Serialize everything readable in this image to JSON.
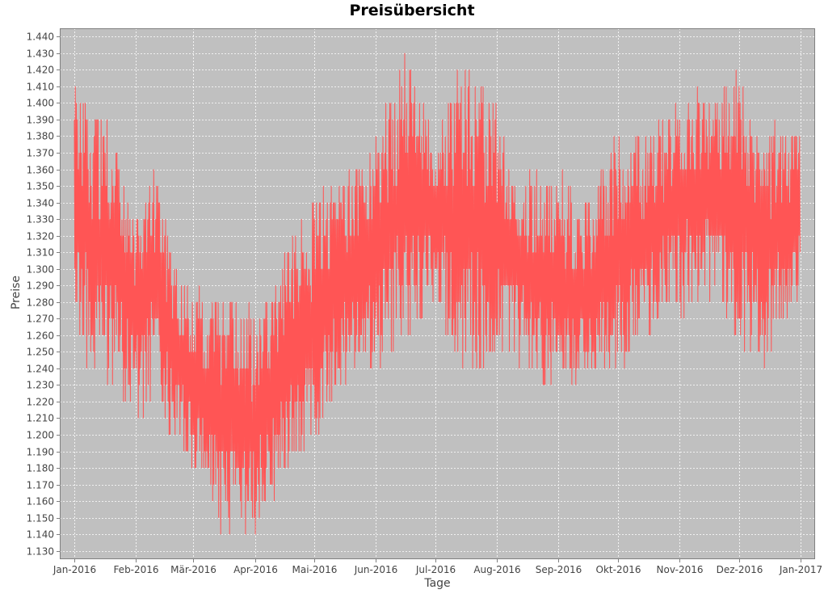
{
  "chart_data": {
    "type": "line",
    "title": "Preisübersicht",
    "xlabel": "Tage",
    "ylabel": "Preise",
    "x_range": [
      "2016-01-01",
      "2017-01-01"
    ],
    "ylim": [
      1.125,
      1.445
    ],
    "y_ticks": [
      "1.130",
      "1.140",
      "1.150",
      "1.160",
      "1.170",
      "1.180",
      "1.190",
      "1.200",
      "1.210",
      "1.220",
      "1.230",
      "1.240",
      "1.250",
      "1.260",
      "1.270",
      "1.280",
      "1.290",
      "1.300",
      "1.310",
      "1.320",
      "1.330",
      "1.340",
      "1.350",
      "1.360",
      "1.370",
      "1.380",
      "1.390",
      "1.400",
      "1.410",
      "1.420",
      "1.430",
      "1.440"
    ],
    "x_ticks": [
      {
        "label": "Jan-2016",
        "date": "2016-01-01"
      },
      {
        "label": "Feb-2016",
        "date": "2016-02-01"
      },
      {
        "label": "Mär-2016",
        "date": "2016-03-01"
      },
      {
        "label": "Apr-2016",
        "date": "2016-04-01"
      },
      {
        "label": "Mai-2016",
        "date": "2016-05-01"
      },
      {
        "label": "Jun-2016",
        "date": "2016-06-01"
      },
      {
        "label": "Jul-2016",
        "date": "2016-07-01"
      },
      {
        "label": "Aug-2016",
        "date": "2016-08-01"
      },
      {
        "label": "Sep-2016",
        "date": "2016-09-01"
      },
      {
        "label": "Okt-2016",
        "date": "2016-10-01"
      },
      {
        "label": "Nov-2016",
        "date": "2016-11-01"
      },
      {
        "label": "Dez-2016",
        "date": "2016-12-01"
      },
      {
        "label": "Jan-2017",
        "date": "2017-01-01"
      }
    ],
    "grid": true,
    "background_color": "#c0c0c0",
    "gridline_color": "#ffffff",
    "series_color": "#ff5555",
    "series": [
      {
        "x_start": "2016-01-01",
        "x_end": "2016-12-31",
        "envelope": [
          {
            "date": "2016-01-01",
            "low": 1.27,
            "high": 1.42
          },
          {
            "date": "2016-01-10",
            "low": 1.23,
            "high": 1.4
          },
          {
            "date": "2016-01-20",
            "low": 1.23,
            "high": 1.39
          },
          {
            "date": "2016-02-01",
            "low": 1.21,
            "high": 1.33
          },
          {
            "date": "2016-02-10",
            "low": 1.22,
            "high": 1.37
          },
          {
            "date": "2016-02-20",
            "low": 1.19,
            "high": 1.31
          },
          {
            "date": "2016-03-01",
            "low": 1.17,
            "high": 1.29
          },
          {
            "date": "2016-03-15",
            "low": 1.14,
            "high": 1.28
          },
          {
            "date": "2016-04-01",
            "low": 1.14,
            "high": 1.28
          },
          {
            "date": "2016-04-10",
            "low": 1.16,
            "high": 1.29
          },
          {
            "date": "2016-04-20",
            "low": 1.18,
            "high": 1.32
          },
          {
            "date": "2016-05-01",
            "low": 1.19,
            "high": 1.35
          },
          {
            "date": "2016-05-15",
            "low": 1.23,
            "high": 1.35
          },
          {
            "date": "2016-06-01",
            "low": 1.24,
            "high": 1.39
          },
          {
            "date": "2016-06-15",
            "low": 1.25,
            "high": 1.43
          },
          {
            "date": "2016-07-01",
            "low": 1.28,
            "high": 1.39
          },
          {
            "date": "2016-07-15",
            "low": 1.23,
            "high": 1.43
          },
          {
            "date": "2016-08-01",
            "low": 1.25,
            "high": 1.4
          },
          {
            "date": "2016-08-15",
            "low": 1.24,
            "high": 1.36
          },
          {
            "date": "2016-09-01",
            "low": 1.22,
            "high": 1.36
          },
          {
            "date": "2016-09-15",
            "low": 1.23,
            "high": 1.34
          },
          {
            "date": "2016-10-01",
            "low": 1.23,
            "high": 1.39
          },
          {
            "date": "2016-10-15",
            "low": 1.26,
            "high": 1.38
          },
          {
            "date": "2016-11-01",
            "low": 1.27,
            "high": 1.41
          },
          {
            "date": "2016-11-15",
            "low": 1.28,
            "high": 1.41
          },
          {
            "date": "2016-12-01",
            "low": 1.25,
            "high": 1.42
          },
          {
            "date": "2016-12-15",
            "low": 1.24,
            "high": 1.39
          },
          {
            "date": "2016-12-31",
            "low": 1.28,
            "high": 1.39
          }
        ]
      }
    ]
  }
}
